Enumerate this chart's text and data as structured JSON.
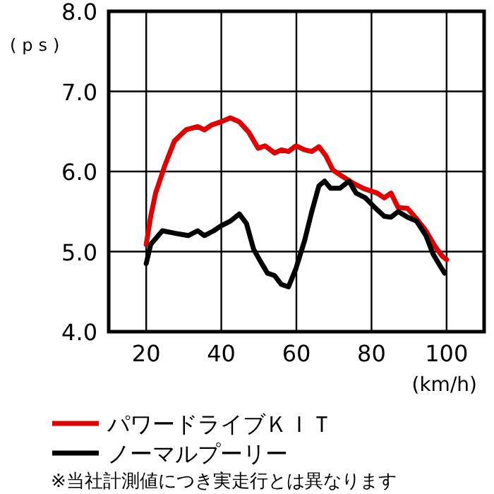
{
  "chart_data": {
    "type": "line",
    "xlabel": "(km/h)",
    "ylabel": "(ps)",
    "xlim": [
      10,
      110
    ],
    "ylim": [
      4,
      8
    ],
    "xticks": [
      20,
      40,
      60,
      80,
      100
    ],
    "yticks": [
      {
        "value": 4,
        "label": "4.0"
      },
      {
        "value": 5,
        "label": "5.0"
      },
      {
        "value": 6,
        "label": "6.0"
      },
      {
        "value": 7,
        "label": "7.0"
      },
      {
        "value": 8,
        "label": "8.0"
      }
    ],
    "grid": true,
    "legend": "bottom",
    "marker": "none",
    "line_style": "solid",
    "annotations": [
      "※当社計測値につき実走行とは異なります"
    ],
    "series": [
      {
        "name": "パワードライブＫＩＴ",
        "color": "#e00000",
        "x": [
          20,
          21.2,
          22.5,
          25,
          27.5,
          30.6,
          33.7,
          35.5,
          37.4,
          39.9,
          42.4,
          44.8,
          47.3,
          49.8,
          51.7,
          54.2,
          56,
          57.9,
          59.9,
          62.2,
          64.1,
          66,
          67.8,
          69.7,
          72.2,
          75.3,
          77.8,
          79.6,
          81.5,
          83.4,
          85.2,
          87.1,
          89.6,
          92,
          94.5,
          97,
          98.9,
          100
        ],
        "values": [
          5.09,
          5.44,
          5.73,
          6.08,
          6.38,
          6.52,
          6.56,
          6.52,
          6.58,
          6.62,
          6.67,
          6.62,
          6.49,
          6.29,
          6.32,
          6.23,
          6.27,
          6.25,
          6.32,
          6.27,
          6.25,
          6.31,
          6.2,
          6.02,
          5.94,
          5.85,
          5.79,
          5.76,
          5.73,
          5.67,
          5.73,
          5.55,
          5.54,
          5.41,
          5.26,
          5.06,
          4.94,
          4.9
        ]
      },
      {
        "name": "ノーマルプーリー",
        "color": "#000000",
        "x": [
          20,
          21.2,
          24.3,
          27.5,
          31.2,
          33.7,
          35.5,
          38,
          39.9,
          42.4,
          44.8,
          46.7,
          48.6,
          50.4,
          52.3,
          54.2,
          56,
          57.9,
          59.9,
          62.2,
          64.1,
          66,
          67.5,
          69.1,
          71.6,
          74,
          75.9,
          78.4,
          80.9,
          83.4,
          85.2,
          87.1,
          89.6,
          92,
          94.5,
          96.4,
          98.3,
          99.5
        ],
        "values": [
          4.85,
          5.09,
          5.26,
          5.23,
          5.2,
          5.26,
          5.2,
          5.26,
          5.32,
          5.38,
          5.47,
          5.35,
          5.03,
          4.88,
          4.73,
          4.7,
          4.59,
          4.56,
          4.79,
          5.14,
          5.5,
          5.82,
          5.88,
          5.79,
          5.79,
          5.88,
          5.73,
          5.67,
          5.55,
          5.44,
          5.43,
          5.5,
          5.43,
          5.38,
          5.2,
          4.97,
          4.82,
          4.73
        ]
      }
    ]
  }
}
